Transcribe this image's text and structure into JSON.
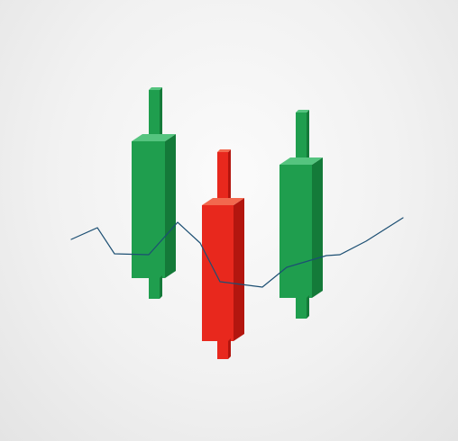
{
  "illustration": {
    "subject": "3d-candlestick-chart",
    "colors": {
      "background": "#f1f1f1",
      "bull_front": "#1f9e4e",
      "bull_side": "#147a39",
      "bull_top": "#55c47f",
      "bear_front": "#e8281d",
      "bear_side": "#b3160f",
      "bear_top": "#f2684e",
      "trend_line": "#1c4f73"
    },
    "candles": [
      {
        "name": "candle-bullish-left",
        "direction": "up"
      },
      {
        "name": "candle-bearish-middle",
        "direction": "down"
      },
      {
        "name": "candle-bullish-right",
        "direction": "up"
      }
    ]
  }
}
